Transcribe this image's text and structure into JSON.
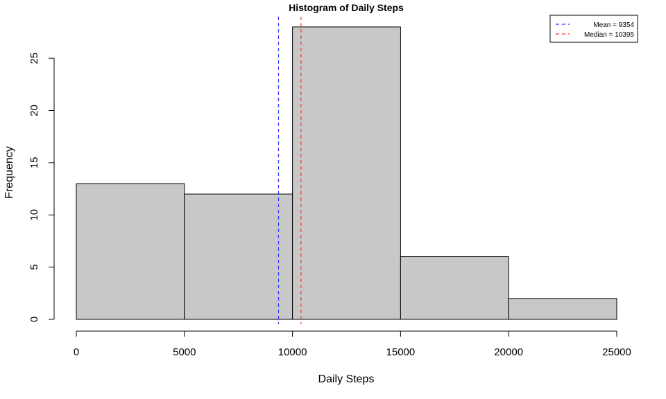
{
  "chart_data": {
    "type": "histogram",
    "title": "Histogram of Daily Steps",
    "xlabel": "Daily Steps",
    "ylabel": "Frequency",
    "bins": [
      {
        "start": 0,
        "end": 5000,
        "count": 13
      },
      {
        "start": 5000,
        "end": 10000,
        "count": 12
      },
      {
        "start": 10000,
        "end": 15000,
        "count": 28
      },
      {
        "start": 15000,
        "end": 20000,
        "count": 6
      },
      {
        "start": 20000,
        "end": 25000,
        "count": 2
      }
    ],
    "xlim": [
      0,
      25000
    ],
    "ylim": [
      0,
      28
    ],
    "x_ticks": [
      0,
      5000,
      10000,
      15000,
      20000,
      25000
    ],
    "x_tick_labels": [
      "0",
      "5000",
      "10000",
      "15000",
      "20000",
      "25000"
    ],
    "y_ticks": [
      0,
      5,
      10,
      15,
      20,
      25
    ],
    "y_tick_labels": [
      "0",
      "5",
      "10",
      "15",
      "20",
      "25"
    ],
    "bar_color": "#c8c8c8",
    "reference_lines": [
      {
        "name": "Mean",
        "value": 9354,
        "color": "#3333ff",
        "style": "dashed"
      },
      {
        "name": "Median",
        "value": 10395,
        "color": "#ff3333",
        "style": "dashed"
      }
    ],
    "legend": {
      "placement": "top-right",
      "entries": [
        {
          "label": "Mean =   9354",
          "color": "#3333ff"
        },
        {
          "label": "Median = 10395",
          "color": "#ff3333"
        }
      ]
    },
    "grid": false
  }
}
